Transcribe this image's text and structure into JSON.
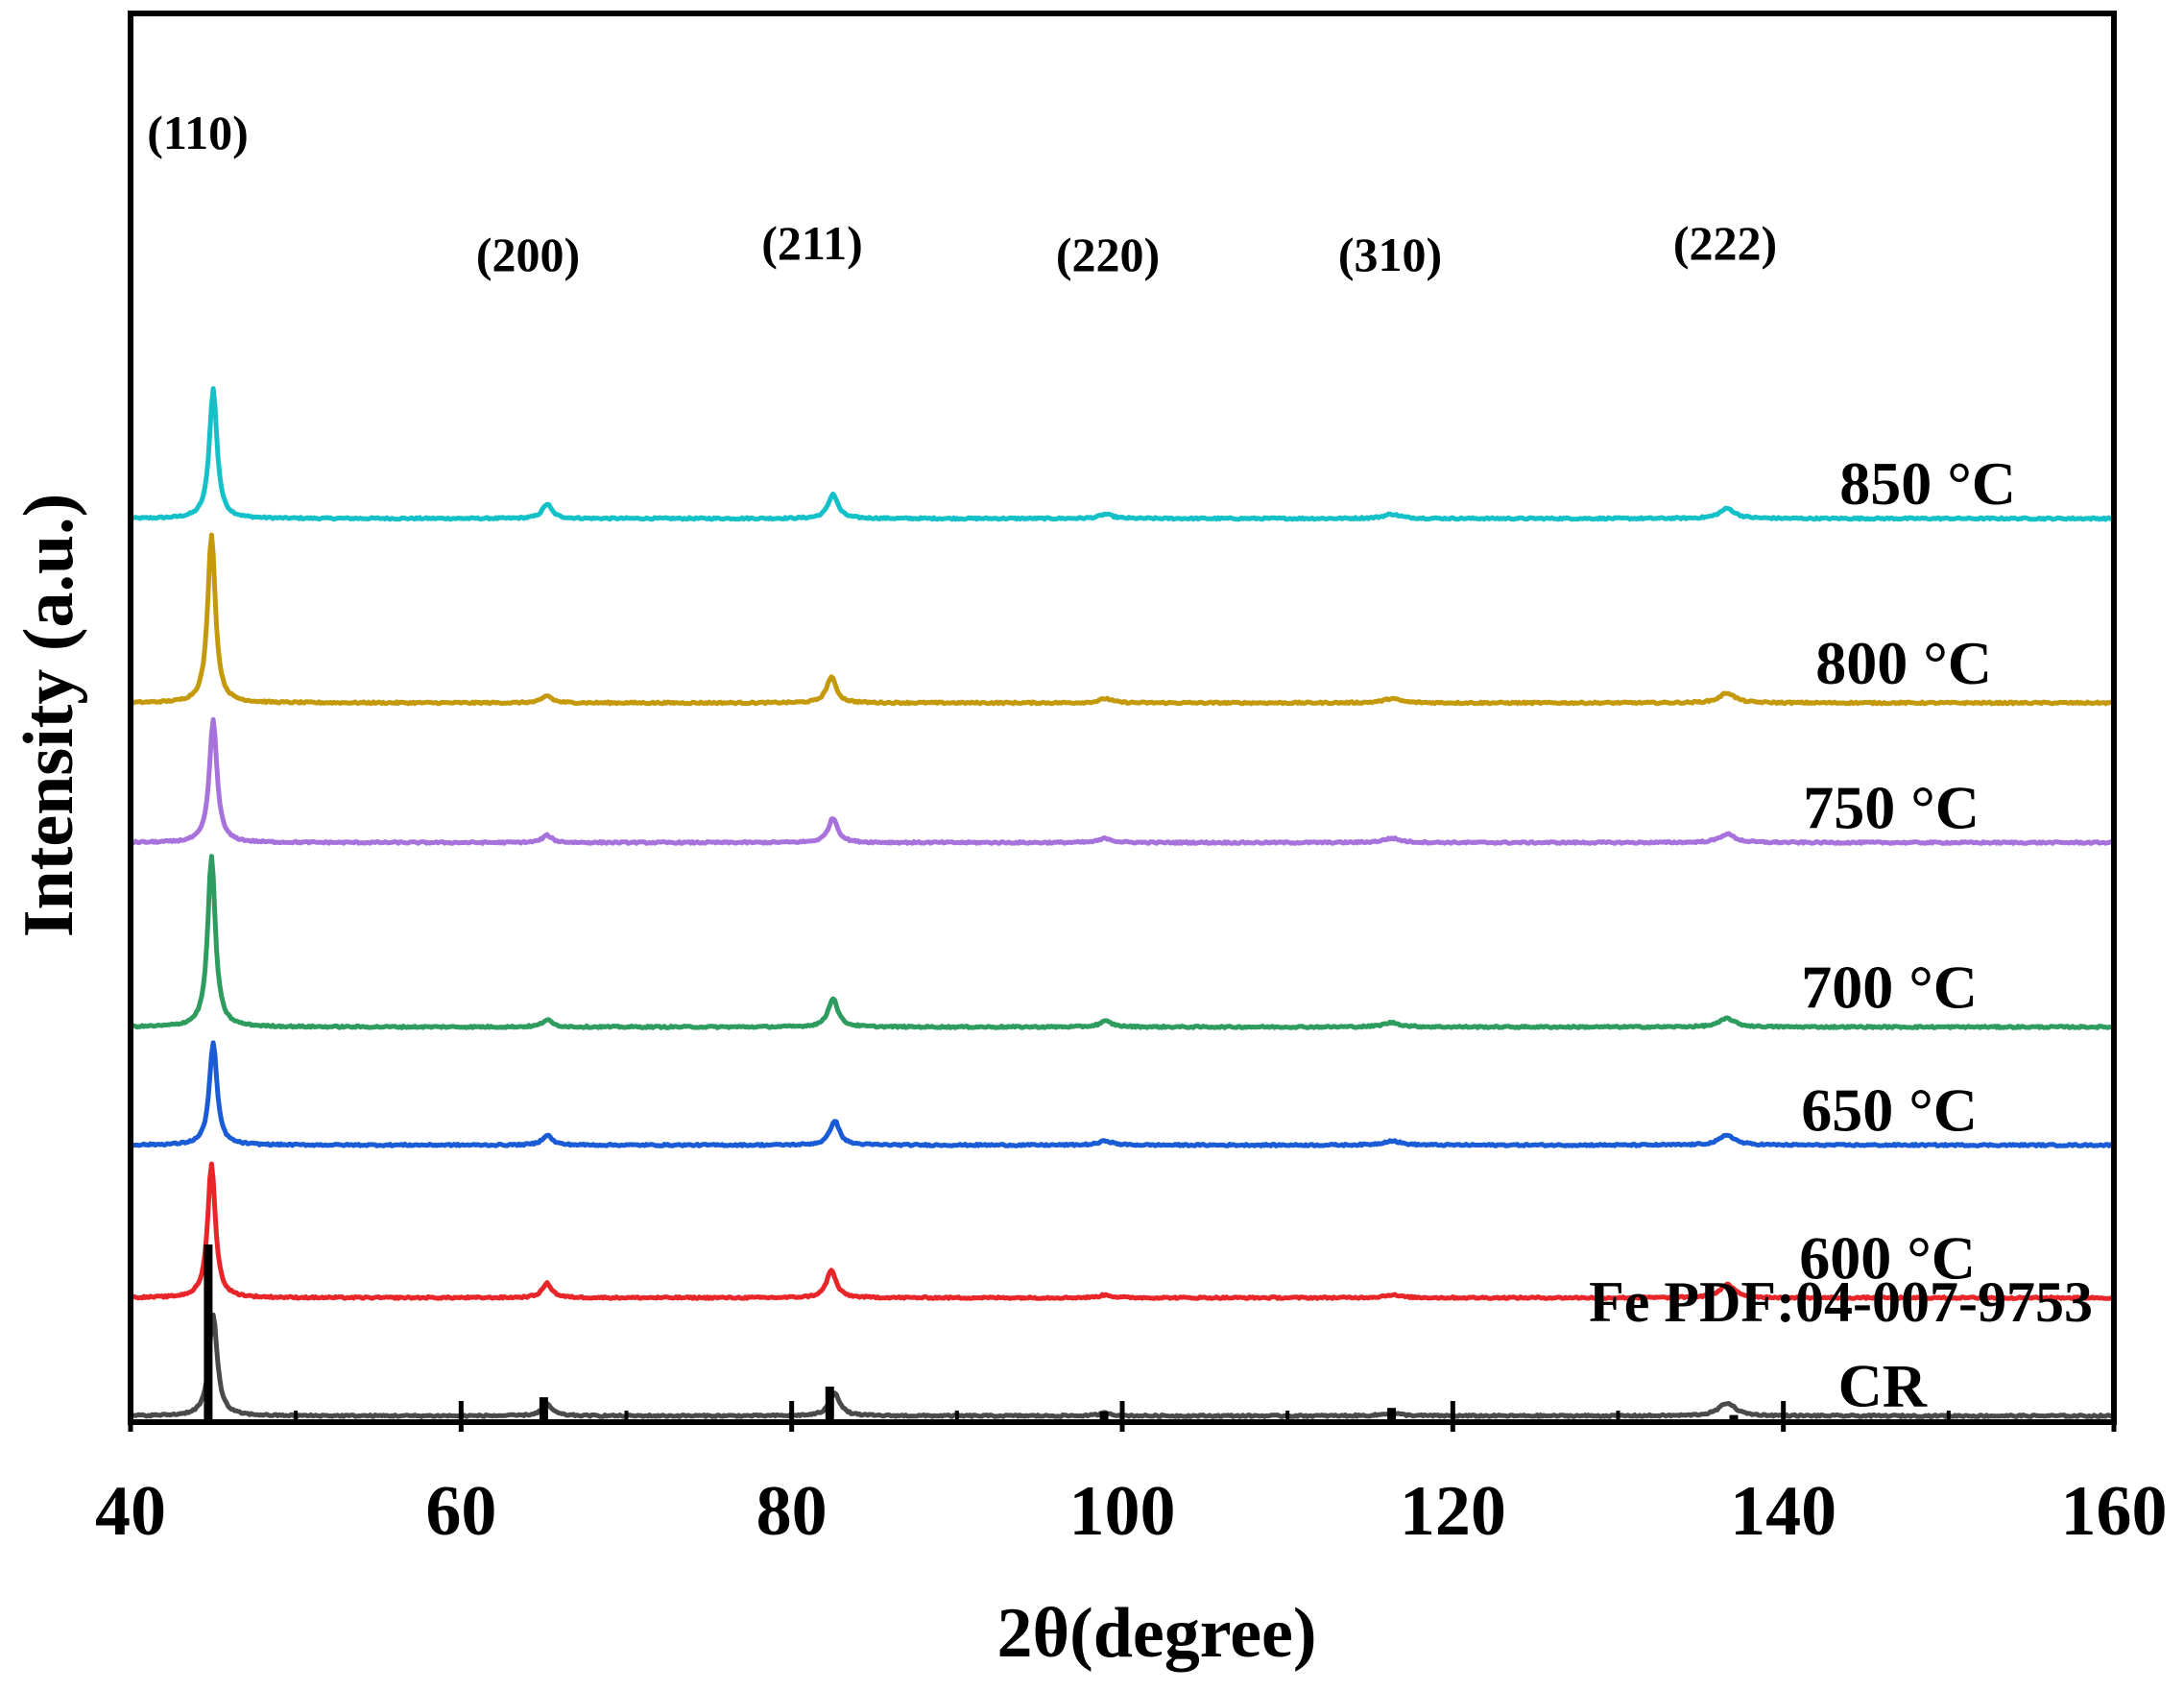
{
  "chart_data": {
    "type": "line",
    "title": "",
    "xlabel": "2θ(degree)",
    "ylabel": "Intensity (a.u.)",
    "xlim": [
      40,
      160
    ],
    "xticks": [
      40,
      60,
      80,
      100,
      120,
      140,
      160
    ],
    "xtick_labels": [
      "40",
      "60",
      "80",
      "100",
      "120",
      "140",
      "160"
    ],
    "minor_xticks": [
      50,
      70,
      90,
      110,
      130,
      150
    ],
    "grid": false,
    "peak_labels": [
      {
        "label": "(110)",
        "x": 44.8
      },
      {
        "label": "(200)",
        "x": 65.2
      },
      {
        "label": "(211)",
        "x": 82.5
      },
      {
        "label": "(220)",
        "x": 99.0
      },
      {
        "label": "(310)",
        "x": 116.2
      },
      {
        "label": "(222)",
        "x": 136.6
      }
    ],
    "series": [
      {
        "name": "850 °C",
        "color": "#14c1c8",
        "baseline": 5.9,
        "peaks": [
          {
            "x": 45.0,
            "h": 0.9,
            "w": 0.28
          },
          {
            "x": 65.2,
            "h": 0.1,
            "w": 0.35
          },
          {
            "x": 82.5,
            "h": 0.17,
            "w": 0.35
          },
          {
            "x": 99.0,
            "h": 0.03,
            "w": 0.45
          },
          {
            "x": 116.3,
            "h": 0.03,
            "w": 0.6
          },
          {
            "x": 136.6,
            "h": 0.07,
            "w": 0.55
          }
        ]
      },
      {
        "name": "800 °C",
        "color": "#c49a0c",
        "baseline": 4.62,
        "peaks": [
          {
            "x": 44.9,
            "h": 1.17,
            "w": 0.28
          },
          {
            "x": 65.2,
            "h": 0.05,
            "w": 0.35
          },
          {
            "x": 82.4,
            "h": 0.18,
            "w": 0.35
          },
          {
            "x": 99.0,
            "h": 0.03,
            "w": 0.45
          },
          {
            "x": 116.3,
            "h": 0.03,
            "w": 0.6
          },
          {
            "x": 136.6,
            "h": 0.07,
            "w": 0.55
          }
        ]
      },
      {
        "name": "750 °C",
        "color": "#a872dc",
        "baseline": 3.65,
        "peaks": [
          {
            "x": 45.0,
            "h": 0.85,
            "w": 0.28
          },
          {
            "x": 65.2,
            "h": 0.05,
            "w": 0.35
          },
          {
            "x": 82.5,
            "h": 0.17,
            "w": 0.35
          },
          {
            "x": 99.0,
            "h": 0.03,
            "w": 0.45
          },
          {
            "x": 116.3,
            "h": 0.03,
            "w": 0.6
          },
          {
            "x": 136.6,
            "h": 0.06,
            "w": 0.55
          }
        ]
      },
      {
        "name": "700 °C",
        "color": "#2e9c5e",
        "baseline": 2.37,
        "peaks": [
          {
            "x": 44.9,
            "h": 1.18,
            "w": 0.28
          },
          {
            "x": 65.2,
            "h": 0.05,
            "w": 0.35
          },
          {
            "x": 82.5,
            "h": 0.2,
            "w": 0.35
          },
          {
            "x": 99.0,
            "h": 0.04,
            "w": 0.45
          },
          {
            "x": 116.3,
            "h": 0.03,
            "w": 0.6
          },
          {
            "x": 136.6,
            "h": 0.06,
            "w": 0.55
          }
        ]
      },
      {
        "name": "650 °C",
        "color": "#1a5bd6",
        "baseline": 1.55,
        "peaks": [
          {
            "x": 45.0,
            "h": 0.71,
            "w": 0.28
          },
          {
            "x": 65.2,
            "h": 0.07,
            "w": 0.35
          },
          {
            "x": 82.6,
            "h": 0.17,
            "w": 0.35
          },
          {
            "x": 99.0,
            "h": 0.03,
            "w": 0.45
          },
          {
            "x": 116.3,
            "h": 0.03,
            "w": 0.6
          },
          {
            "x": 136.6,
            "h": 0.07,
            "w": 0.55
          }
        ]
      },
      {
        "name": "600 °C",
        "color": "#e8262a",
        "baseline": 0.49,
        "peaks": [
          {
            "x": 44.9,
            "h": 0.93,
            "w": 0.28
          },
          {
            "x": 65.2,
            "h": 0.1,
            "w": 0.35
          },
          {
            "x": 82.4,
            "h": 0.19,
            "w": 0.35
          },
          {
            "x": 99.0,
            "h": 0.02,
            "w": 0.45
          },
          {
            "x": 116.3,
            "h": 0.02,
            "w": 0.6
          },
          {
            "x": 136.6,
            "h": 0.09,
            "w": 0.55
          }
        ]
      },
      {
        "name": "CR",
        "color": "#4a4a4a",
        "baseline": -0.33,
        "peaks": [
          {
            "x": 45.0,
            "h": 0.7,
            "w": 0.3
          },
          {
            "x": 65.2,
            "h": 0.08,
            "w": 0.38
          },
          {
            "x": 82.6,
            "h": 0.16,
            "w": 0.38
          },
          {
            "x": 99.0,
            "h": 0.02,
            "w": 0.45
          },
          {
            "x": 116.3,
            "h": 0.02,
            "w": 0.6
          },
          {
            "x": 136.6,
            "h": 0.09,
            "w": 0.6
          }
        ]
      }
    ],
    "reference": {
      "name": "Fe PDF:04-007-9753",
      "color": "#000000",
      "sticks": [
        {
          "x": 44.7,
          "intensity": 100
        },
        {
          "x": 65.0,
          "intensity": 14
        },
        {
          "x": 82.3,
          "intensity": 20
        },
        {
          "x": 98.9,
          "intensity": 6
        },
        {
          "x": 116.3,
          "intensity": 8
        },
        {
          "x": 137.0,
          "intensity": 4
        }
      ]
    }
  }
}
